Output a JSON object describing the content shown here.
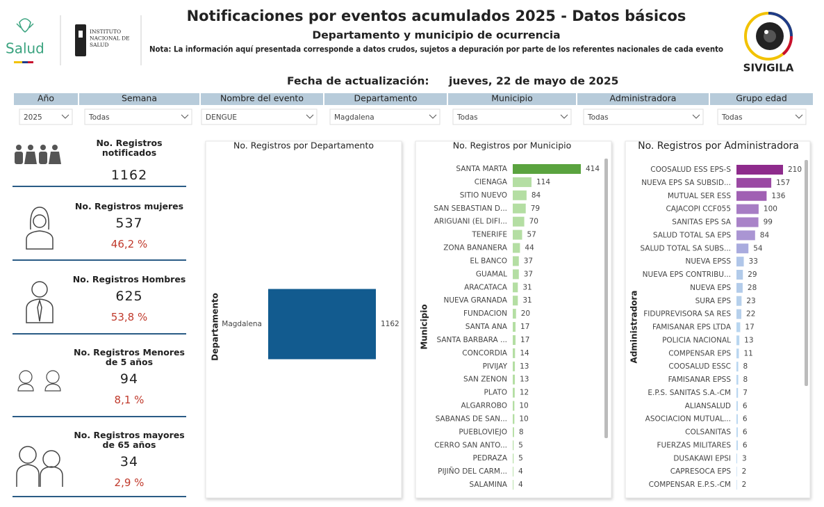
{
  "header": {
    "title": "Notificaciones por eventos acumulados 2025 - Datos básicos",
    "subtitle": "Departamento y municipio de ocurrencia",
    "note": "Nota: La información aquí presentada corresponde a datos crudos, sujetos a depuración por parte de los referentes nacionales de cada evento",
    "logos": {
      "salud": "Salud",
      "ins": [
        "INSTITUTO",
        "NACIONAL DE",
        "SALUD"
      ],
      "sivigila": "SIVIGILA"
    },
    "update_label": "Fecha de actualización:",
    "update_date": "jueves, 22 de mayo de 2025"
  },
  "filters": [
    {
      "label": "Año",
      "value": "2025"
    },
    {
      "label": "Semana",
      "value": "Todas"
    },
    {
      "label": "Nombre del evento",
      "value": "DENGUE"
    },
    {
      "label": "Departamento",
      "value": "Magdalena"
    },
    {
      "label": "Municipio",
      "value": "Todas"
    },
    {
      "label": "Administradora",
      "value": "Todas"
    },
    {
      "label": "Grupo edad",
      "value": "Todas"
    }
  ],
  "kpis": [
    {
      "label": "No. Registros notificados",
      "value": "1162"
    },
    {
      "label": "No. Registros mujeres",
      "value": "537",
      "percent": "46,2 %"
    },
    {
      "label": "No. Registros Hombres",
      "value": "625",
      "percent": "53,8 %"
    },
    {
      "label": "No. Registros Menores de 5 años",
      "value": "94",
      "percent": "8,1 %"
    },
    {
      "label": "No. Registros mayores de 65 años",
      "value": "34",
      "percent": "2,9 %"
    }
  ],
  "chart_data": [
    {
      "type": "bar",
      "orientation": "horizontal",
      "title": "No. Registros por Departamento",
      "y_label": "Departamento",
      "categories": [
        "Magdalena"
      ],
      "values": [
        1162
      ],
      "colors": [
        "#125b8f"
      ]
    },
    {
      "type": "bar",
      "orientation": "horizontal",
      "title": "No. Registros por Municipio",
      "y_label": "Municipio",
      "categories": [
        "SANTA MARTA",
        "CIENAGA",
        "SITIO NUEVO",
        "SAN SEBASTIAN D...",
        "ARIGUANI (EL DIFI...",
        "TENERIFE",
        "ZONA BANANERA",
        "EL BANCO",
        "GUAMAL",
        "ARACATACA",
        "NUEVA GRANADA",
        "FUNDACION",
        "SANTA ANA",
        "SANTA BARBARA ...",
        "CONCORDIA",
        "PIVIJAY",
        "SAN ZENON",
        "PLATO",
        "ALGARROBO",
        "SABANAS DE SAN...",
        "PUEBLOVIEJO",
        "CERRO SAN ANTO...",
        "PEDRAZA",
        "PIJIÑO DEL CARM...",
        "SALAMINA"
      ],
      "values": [
        414,
        114,
        84,
        79,
        70,
        57,
        44,
        37,
        37,
        31,
        31,
        20,
        17,
        17,
        14,
        13,
        13,
        12,
        10,
        10,
        8,
        5,
        5,
        4,
        4
      ],
      "colors": [
        "#5aa33f",
        "#b4dea3",
        "#b4dea3",
        "#b4dea3",
        "#b4dea3",
        "#b4dea3",
        "#b4dea3",
        "#b4dea3",
        "#b4dea3",
        "#b4dea3",
        "#b4dea3",
        "#b4dea3",
        "#b4dea3",
        "#b4dea3",
        "#b4dea3",
        "#b4dea3",
        "#b4dea3",
        "#b4dea3",
        "#b4dea3",
        "#b4dea3",
        "#b4dea3",
        "#b4dea3",
        "#b4dea3",
        "#b4dea3",
        "#b4dea3"
      ]
    },
    {
      "type": "bar",
      "orientation": "horizontal",
      "title": "No. Registros por Administradora",
      "y_label": "Administradora",
      "categories": [
        "COOSALUD ESS EPS-S",
        "NUEVA EPS SA SUBSID...",
        "MUTUAL SER ESS",
        "CAJACOPI CCF055",
        "SANITAS EPS SA",
        "SALUD TOTAL SA EPS",
        "SALUD TOTAL SA SUBS...",
        "NUEVA EPSS",
        "NUEVA EPS CONTRIBU...",
        "NUEVA EPS",
        "SURA EPS",
        "FIDUPREVISORA SA RES",
        "FAMISANAR EPS LTDA",
        "POLICIA NACIONAL",
        "COMPENSAR EPS",
        "COOSALUD ESSC",
        "FAMISANAR EPSS",
        "E.P.S. SANITAS S.A.-CM",
        "ALIANSALUD",
        "ASOCIACION MUTUAL...",
        "COLSANITAS",
        "FUERZAS MILITARES",
        "DUSAKAWI EPSI",
        "CAPRESOCA EPS",
        "COMPENSAR E.P.S.-CM"
      ],
      "values": [
        210,
        157,
        136,
        100,
        99,
        84,
        54,
        33,
        29,
        28,
        23,
        22,
        17,
        13,
        11,
        8,
        8,
        7,
        6,
        6,
        6,
        6,
        3,
        2,
        2
      ],
      "colors": [
        "#8e2b8c",
        "#9b49a3",
        "#a060b3",
        "#a77dc4",
        "#a983c8",
        "#aa95d3",
        "#a9abde",
        "#b0c6e9",
        "#b2cbea",
        "#b3ccea",
        "#b6d0ec",
        "#b6d0ec",
        "#b9d6f0",
        "#b9d6f0",
        "#b9d6f0",
        "#b9d6f0",
        "#b9d6f0",
        "#b9d6f0",
        "#b9d6f0",
        "#b9d6f0",
        "#b9d6f0",
        "#b9d6f0",
        "#b9d6f0",
        "#b9d6f0",
        "#b9d6f0"
      ]
    }
  ]
}
